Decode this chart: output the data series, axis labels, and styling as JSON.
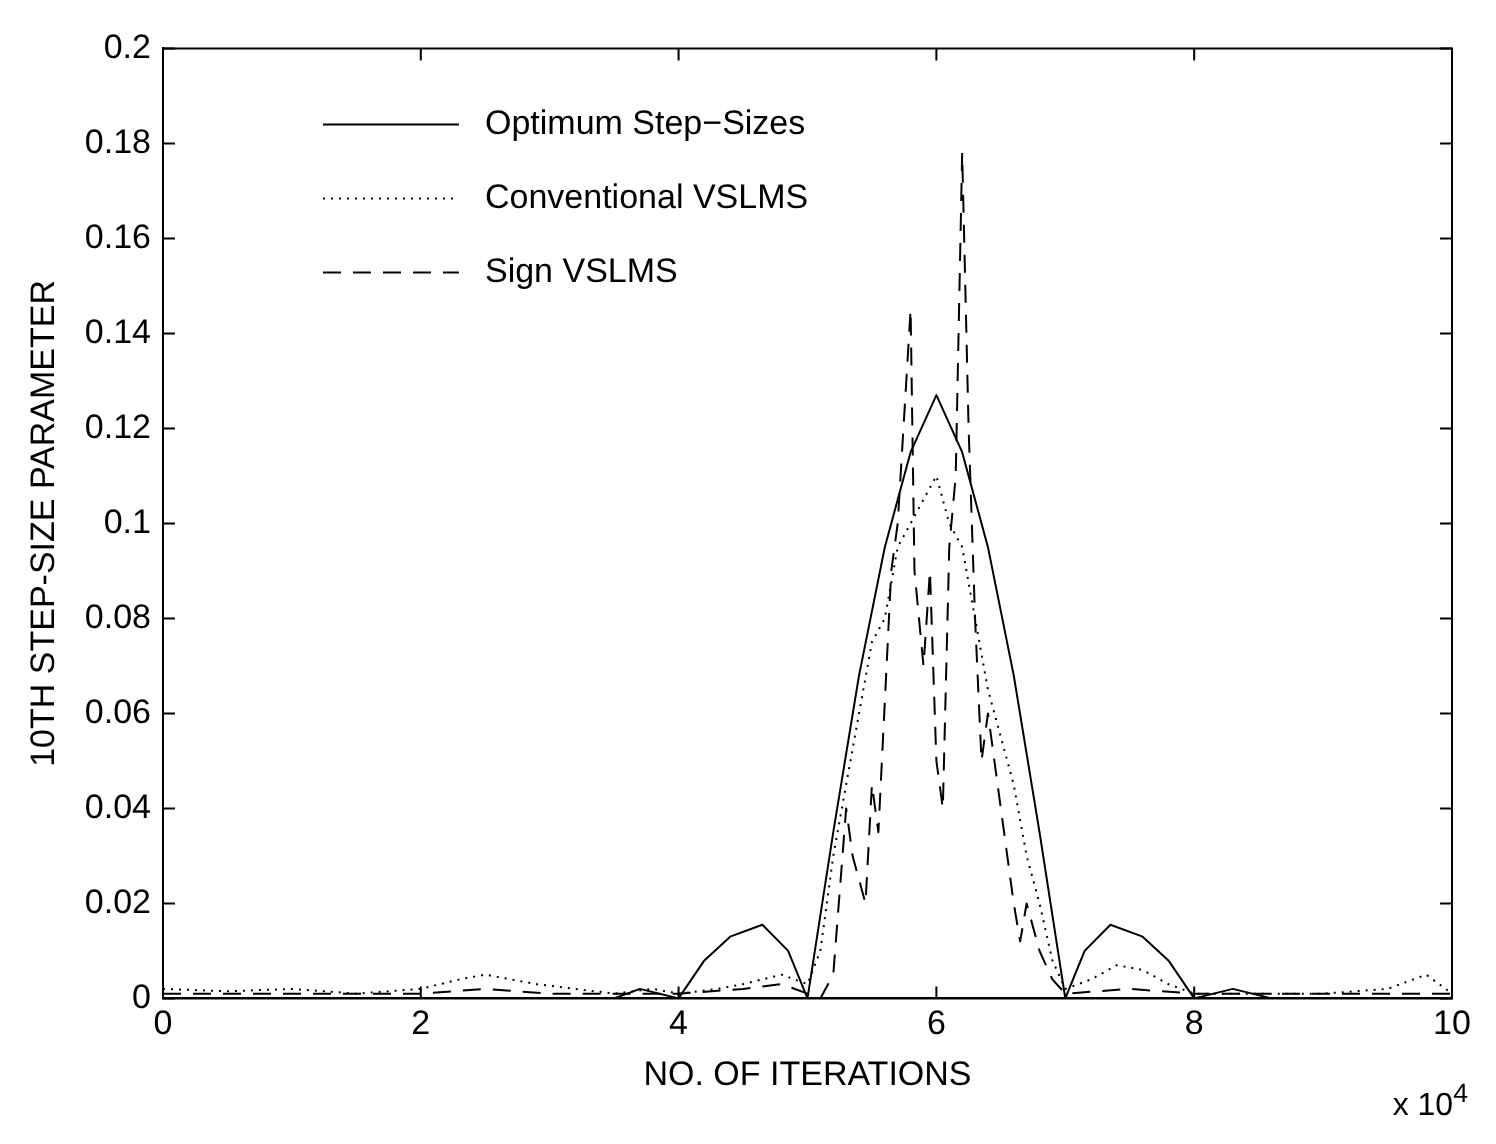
{
  "chart_data": {
    "type": "line",
    "xlabel": "NO. OF ITERATIONS",
    "ylabel": "10TH STEP-SIZE PARAMETER",
    "annotations": [
      "x 10$^{4}$"
    ],
    "xlim": [
      0,
      10
    ],
    "xticks": [
      0,
      2,
      4,
      6,
      8,
      10
    ],
    "ylim": [
      0,
      0.2
    ],
    "yticks": [
      0,
      0.02,
      0.04,
      0.06,
      0.08,
      0.1,
      0.12,
      0.14,
      0.16,
      0.18,
      0.2
    ],
    "grid": false,
    "legend": "top left",
    "marker": "none",
    "series": [
      {
        "name": "Optimum Step−Sizes",
        "color": "#000000",
        "line_style": "solid",
        "x": [
          0,
          3.5,
          3.7,
          4,
          4.2,
          4.4,
          4.65,
          4.85,
          5,
          5.2,
          5.4,
          5.6,
          5.8,
          6,
          6.2,
          6.4,
          6.6,
          6.8,
          7,
          7.15,
          7.35,
          7.6,
          7.8,
          8,
          8.3,
          8.6,
          10
        ],
        "values": [
          0,
          0,
          0.002,
          0,
          0.008,
          0.013,
          0.0155,
          0.01,
          0,
          0.035,
          0.068,
          0.095,
          0.115,
          0.127,
          0.115,
          0.095,
          0.068,
          0.035,
          0,
          0.01,
          0.0155,
          0.013,
          0.008,
          0,
          0.002,
          0,
          0
        ]
      },
      {
        "name": "Conventional VSLMS",
        "color": "#000000",
        "line_style": "dotted",
        "x": [
          0,
          0.5,
          1,
          1.5,
          2,
          2.3,
          2.5,
          2.7,
          2.9,
          3.2,
          3.5,
          3.8,
          4,
          4.3,
          4.5,
          4.8,
          5,
          5.1,
          5.2,
          5.3,
          5.4,
          5.5,
          5.6,
          5.7,
          5.8,
          5.9,
          6,
          6.1,
          6.2,
          6.3,
          6.4,
          6.5,
          6.6,
          6.7,
          6.8,
          6.9,
          7,
          7.2,
          7.4,
          7.6,
          7.8,
          8,
          8.4,
          9,
          9.5,
          9.8,
          10
        ],
        "values": [
          0.002,
          0.0015,
          0.002,
          0.001,
          0.002,
          0.004,
          0.005,
          0.004,
          0.003,
          0.002,
          0.001,
          0.002,
          0.001,
          0.002,
          0.003,
          0.005,
          0.003,
          0.01,
          0.03,
          0.045,
          0.06,
          0.075,
          0.08,
          0.095,
          0.1,
          0.105,
          0.11,
          0.1,
          0.095,
          0.08,
          0.065,
          0.055,
          0.045,
          0.03,
          0.02,
          0.008,
          0.002,
          0.004,
          0.007,
          0.006,
          0.003,
          0.001,
          0.001,
          0.001,
          0.002,
          0.005,
          0.001
        ]
      },
      {
        "name": "Sign VSLMS",
        "color": "#000000",
        "line_style": "dashed",
        "x": [
          0,
          1,
          2,
          2.5,
          3,
          3.5,
          4,
          4.5,
          4.8,
          5,
          5.1,
          5.2,
          5.3,
          5.35,
          5.45,
          5.5,
          5.55,
          5.65,
          5.7,
          5.8,
          5.83,
          5.9,
          5.95,
          6,
          6.05,
          6.1,
          6.15,
          6.2,
          6.25,
          6.3,
          6.35,
          6.4,
          6.5,
          6.6,
          6.65,
          6.7,
          6.8,
          6.9,
          7,
          7.5,
          8,
          9,
          10
        ],
        "values": [
          0.001,
          0.001,
          0.001,
          0.002,
          0.001,
          0.001,
          0.001,
          0.002,
          0.003,
          0.001,
          0,
          0.005,
          0.04,
          0.03,
          0.02,
          0.045,
          0.035,
          0.09,
          0.1,
          0.145,
          0.09,
          0.07,
          0.09,
          0.05,
          0.04,
          0.095,
          0.11,
          0.178,
          0.12,
          0.08,
          0.05,
          0.06,
          0.04,
          0.02,
          0.012,
          0.02,
          0.01,
          0.004,
          0.001,
          0.002,
          0.001,
          0.001,
          0.001
        ]
      }
    ]
  }
}
